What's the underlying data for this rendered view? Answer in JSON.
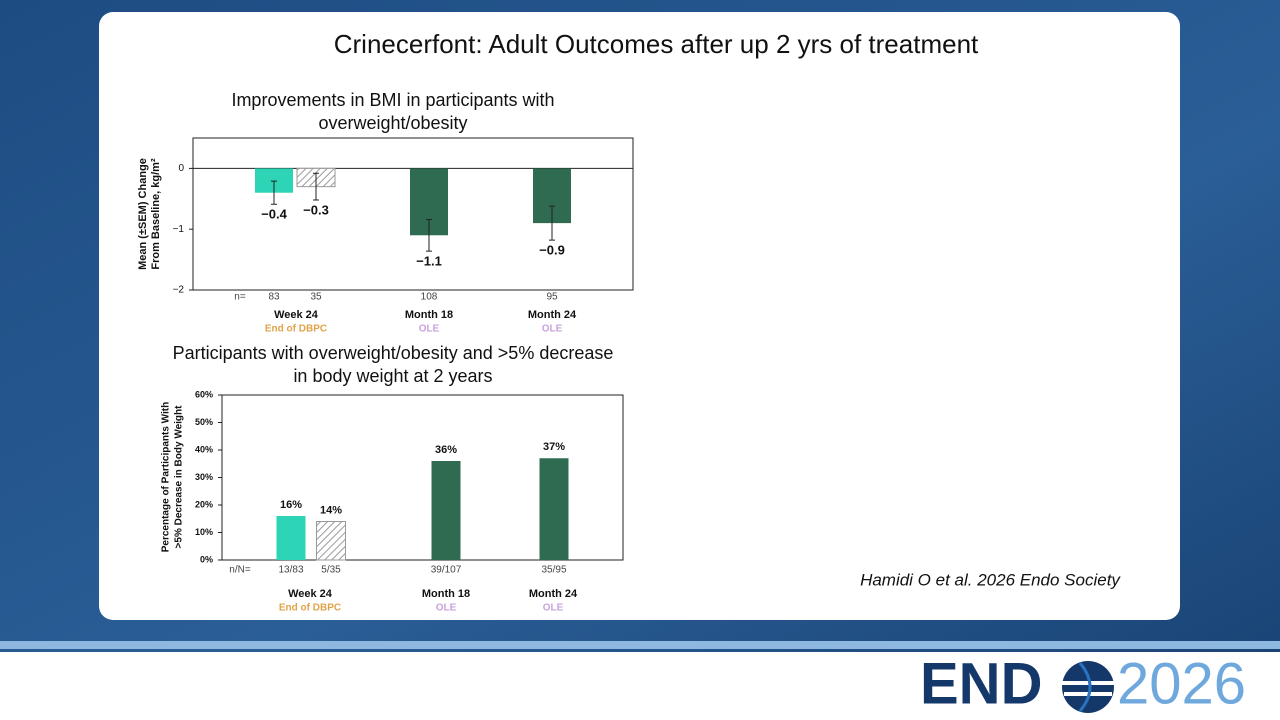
{
  "slide": {
    "title": "Crinecerfont: Adult Outcomes after up 2 yrs of treatment",
    "citation": "Hamidi O et al. 2026 Endo Society",
    "logo": {
      "word": "END",
      "year": "2026"
    }
  },
  "chart_data": [
    {
      "type": "bar",
      "title": [
        "Improvements in BMI in participants with",
        "overweight/obesity"
      ],
      "ylabel": [
        "Mean (±SEM) Change",
        "From Baseline, kg/m²"
      ],
      "categories": [
        "Week 24",
        "Month 18",
        "Month 24"
      ],
      "subcategories": [
        "End of DBPC",
        "OLE",
        "OLE"
      ],
      "subcategory_colors": [
        "#e2a348",
        "#c9a2dd",
        "#c9a2dd"
      ],
      "n_label": "n=",
      "series": [
        {
          "colors": [
            "#2dd4b5",
            "#2f6b50",
            "#2f6b50"
          ],
          "values": [
            -0.4,
            -1.1,
            -0.9
          ],
          "value_labels": [
            "−0.4",
            "−1.1",
            "−0.9"
          ],
          "errors": [
            0.19,
            0.26,
            0.28
          ],
          "n": [
            83,
            108,
            95
          ]
        },
        {
          "hatch": true,
          "colors": [
            "#9a9a9a",
            null,
            null
          ],
          "values": [
            -0.3,
            null,
            null
          ],
          "value_labels": [
            "−0.3",
            null,
            null
          ],
          "errors": [
            0.22,
            null,
            null
          ],
          "n": [
            35,
            null,
            null
          ]
        }
      ],
      "ylim": [
        -2,
        0.5
      ],
      "yticks": [
        0,
        {
          "value": -1,
          "label": "−1"
        },
        {
          "value": -2,
          "label": "−2"
        }
      ],
      "zero_line": true
    },
    {
      "type": "bar",
      "title": [
        "Participants with overweight/obesity and >5% decrease",
        "in body weight at 2 years"
      ],
      "ylabel": [
        "Percentage of Participants With",
        ">5% Decrease in Body Weight"
      ],
      "categories": [
        "Week 24",
        "Month 18",
        "Month 24"
      ],
      "subcategories": [
        "End of DBPC",
        "OLE",
        "OLE"
      ],
      "subcategory_colors": [
        "#e2a348",
        "#c9a2dd",
        "#c9a2dd"
      ],
      "n_label": "n/N=",
      "series": [
        {
          "colors": [
            "#2dd4b5",
            "#2f6b50",
            "#2f6b50"
          ],
          "values": [
            16,
            36,
            37
          ],
          "value_labels": [
            "16%",
            "36%",
            "37%"
          ],
          "n": [
            "13/83",
            "39/107",
            "35/95"
          ]
        },
        {
          "hatch": true,
          "colors": [
            "#9a9a9a",
            null,
            null
          ],
          "values": [
            14,
            null,
            null
          ],
          "value_labels": [
            "14%",
            null,
            null
          ],
          "n": [
            "5/35",
            null,
            null
          ]
        }
      ],
      "ylim": [
        0,
        60
      ],
      "yticks": [
        {
          "value": 0,
          "label": "0%"
        },
        {
          "value": 10,
          "label": "10%"
        },
        {
          "value": 20,
          "label": "20%"
        },
        {
          "value": 30,
          "label": "30%"
        },
        {
          "value": 40,
          "label": "40%"
        },
        {
          "value": 50,
          "label": "50%"
        },
        {
          "value": 60,
          "label": "60%"
        }
      ],
      "zero_line": false
    }
  ]
}
